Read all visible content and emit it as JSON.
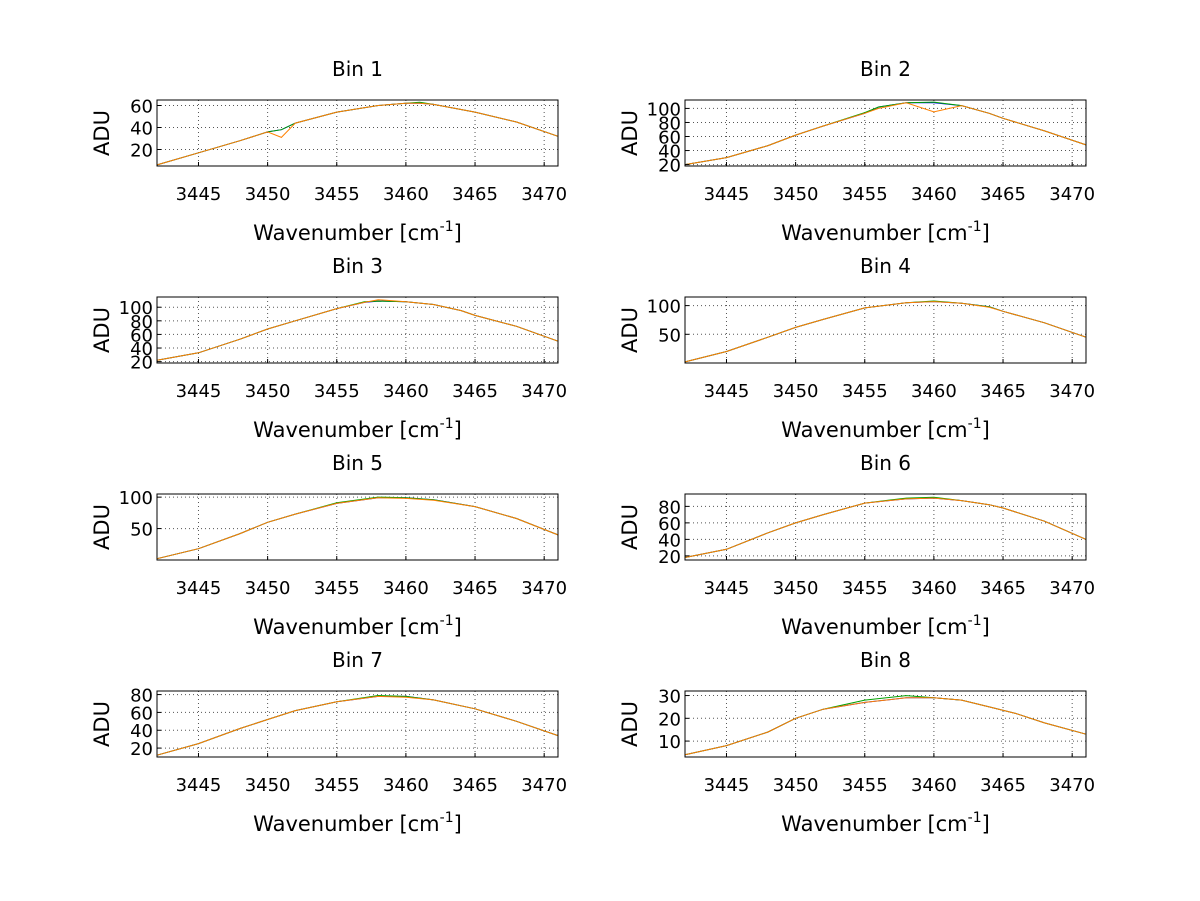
{
  "figure": {
    "background": "#ffffff"
  },
  "chart_data": [
    {
      "type": "line",
      "title": "Bin 1",
      "xlabel": "Wavenumber [cm",
      "xlabel_sup": "-1",
      "xlabel_tail": "]",
      "ylabel": "ADU",
      "xlim": [
        3442,
        3471
      ],
      "ylim": [
        5,
        65
      ],
      "xticks": [
        3445,
        3450,
        3455,
        3460,
        3465,
        3470
      ],
      "yticks": [
        20,
        40,
        60
      ],
      "grid": true,
      "x": [
        3442,
        3445,
        3448,
        3450,
        3451,
        3452,
        3455,
        3458,
        3460,
        3461,
        3462,
        3465,
        3468,
        3471
      ],
      "series": [
        {
          "name": "blue",
          "color": "#0000ff",
          "values": [
            6,
            17,
            28,
            36,
            38,
            44,
            54,
            60,
            62,
            62,
            61,
            54,
            45,
            32
          ]
        },
        {
          "name": "green",
          "color": "#00a000",
          "values": [
            6,
            17,
            28,
            36,
            38,
            44,
            54,
            60,
            62,
            63,
            61,
            54,
            45,
            32
          ]
        },
        {
          "name": "orange",
          "color": "#ff8000",
          "values": [
            6,
            17,
            28,
            36,
            31,
            44,
            54,
            60,
            62,
            62,
            61,
            54,
            45,
            32
          ]
        }
      ]
    },
    {
      "type": "line",
      "title": "Bin 2",
      "xlabel": "Wavenumber [cm",
      "xlabel_sup": "-1",
      "xlabel_tail": "]",
      "ylabel": "ADU",
      "xlim": [
        3442,
        3471
      ],
      "ylim": [
        18,
        112
      ],
      "xticks": [
        3445,
        3450,
        3455,
        3460,
        3465,
        3470
      ],
      "yticks": [
        20,
        40,
        60,
        80,
        100
      ],
      "grid": true,
      "x": [
        3442,
        3445,
        3448,
        3450,
        3452,
        3455,
        3456,
        3458,
        3460,
        3462,
        3464,
        3465,
        3468,
        3471
      ],
      "series": [
        {
          "name": "blue",
          "color": "#0000ff",
          "values": [
            20,
            30,
            47,
            62,
            75,
            93,
            102,
            108,
            108,
            104,
            93,
            86,
            68,
            48
          ]
        },
        {
          "name": "green",
          "color": "#00a000",
          "values": [
            20,
            30,
            47,
            62,
            75,
            94,
            102,
            108,
            109,
            104,
            93,
            86,
            68,
            48
          ]
        },
        {
          "name": "orange",
          "color": "#ff8000",
          "values": [
            20,
            30,
            47,
            62,
            75,
            93,
            100,
            108,
            95,
            104,
            93,
            86,
            68,
            48
          ]
        }
      ]
    },
    {
      "type": "line",
      "title": "Bin 3",
      "xlabel": "Wavenumber [cm",
      "xlabel_sup": "-1",
      "xlabel_tail": "]",
      "ylabel": "ADU",
      "xlim": [
        3442,
        3471
      ],
      "ylim": [
        18,
        115
      ],
      "xticks": [
        3445,
        3450,
        3455,
        3460,
        3465,
        3470
      ],
      "yticks": [
        20,
        40,
        60,
        80,
        100
      ],
      "grid": true,
      "x": [
        3442,
        3445,
        3448,
        3450,
        3452,
        3455,
        3457,
        3458,
        3460,
        3462,
        3464,
        3465,
        3468,
        3471
      ],
      "series": [
        {
          "name": "blue",
          "color": "#0000ff",
          "values": [
            22,
            33,
            53,
            68,
            80,
            98,
            107,
            109,
            108,
            104,
            95,
            88,
            72,
            50
          ]
        },
        {
          "name": "green",
          "color": "#00a000",
          "values": [
            22,
            33,
            53,
            68,
            80,
            98,
            108,
            109,
            108,
            104,
            95,
            88,
            72,
            50
          ]
        },
        {
          "name": "orange",
          "color": "#ff8000",
          "values": [
            22,
            33,
            53,
            68,
            80,
            98,
            107,
            111,
            108,
            104,
            95,
            88,
            72,
            50
          ]
        }
      ]
    },
    {
      "type": "line",
      "title": "Bin 4",
      "xlabel": "Wavenumber [cm",
      "xlabel_sup": "-1",
      "xlabel_tail": "]",
      "ylabel": "ADU",
      "xlim": [
        3442,
        3471
      ],
      "ylim": [
        0,
        115
      ],
      "xticks": [
        3445,
        3450,
        3455,
        3460,
        3465,
        3470
      ],
      "yticks": [
        50,
        100
      ],
      "grid": true,
      "x": [
        3442,
        3445,
        3448,
        3450,
        3452,
        3455,
        3458,
        3460,
        3462,
        3464,
        3465,
        3468,
        3471
      ],
      "series": [
        {
          "name": "blue",
          "color": "#0000ff",
          "values": [
            2,
            20,
            45,
            62,
            76,
            96,
            105,
            107,
            104,
            98,
            90,
            70,
            45
          ]
        },
        {
          "name": "green",
          "color": "#00a000",
          "values": [
            2,
            20,
            45,
            62,
            76,
            96,
            105,
            108,
            104,
            98,
            90,
            70,
            45
          ]
        },
        {
          "name": "orange",
          "color": "#ff8000",
          "values": [
            2,
            20,
            45,
            62,
            76,
            96,
            105,
            107,
            104,
            97,
            90,
            70,
            45
          ]
        }
      ]
    },
    {
      "type": "line",
      "title": "Bin 5",
      "xlabel": "Wavenumber [cm",
      "xlabel_sup": "-1",
      "xlabel_tail": "]",
      "ylabel": "ADU",
      "xlim": [
        3442,
        3471
      ],
      "ylim": [
        0,
        105
      ],
      "xticks": [
        3445,
        3450,
        3455,
        3460,
        3465,
        3470
      ],
      "yticks": [
        50,
        100
      ],
      "grid": true,
      "x": [
        3442,
        3445,
        3448,
        3450,
        3452,
        3455,
        3458,
        3460,
        3462,
        3465,
        3468,
        3471
      ],
      "series": [
        {
          "name": "blue",
          "color": "#0000ff",
          "values": [
            2,
            18,
            42,
            60,
            73,
            90,
            99,
            99,
            96,
            85,
            66,
            40
          ]
        },
        {
          "name": "green",
          "color": "#00a000",
          "values": [
            2,
            18,
            42,
            60,
            73,
            91,
            100,
            99,
            96,
            85,
            66,
            40
          ]
        },
        {
          "name": "orange",
          "color": "#ff8000",
          "values": [
            2,
            18,
            42,
            60,
            73,
            90,
            99,
            98,
            95,
            85,
            66,
            40
          ]
        }
      ]
    },
    {
      "type": "line",
      "title": "Bin 6",
      "xlabel": "Wavenumber [cm",
      "xlabel_sup": "-1",
      "xlabel_tail": "]",
      "ylabel": "ADU",
      "xlim": [
        3442,
        3471
      ],
      "ylim": [
        15,
        95
      ],
      "xticks": [
        3445,
        3450,
        3455,
        3460,
        3465,
        3470
      ],
      "yticks": [
        20,
        40,
        60,
        80
      ],
      "grid": true,
      "x": [
        3442,
        3445,
        3448,
        3450,
        3452,
        3455,
        3458,
        3460,
        3462,
        3464,
        3465,
        3468,
        3471
      ],
      "series": [
        {
          "name": "blue",
          "color": "#0000ff",
          "values": [
            18,
            28,
            48,
            60,
            70,
            84,
            89,
            90,
            87,
            82,
            78,
            62,
            40
          ]
        },
        {
          "name": "green",
          "color": "#00a000",
          "values": [
            18,
            28,
            48,
            60,
            70,
            84,
            90,
            91,
            87,
            82,
            78,
            62,
            40
          ]
        },
        {
          "name": "orange",
          "color": "#ff8000",
          "values": [
            18,
            28,
            48,
            60,
            70,
            84,
            89,
            90,
            87,
            82,
            78,
            62,
            40
          ]
        }
      ]
    },
    {
      "type": "line",
      "title": "Bin 7",
      "xlabel": "Wavenumber [cm",
      "xlabel_sup": "-1",
      "xlabel_tail": "]",
      "ylabel": "ADU",
      "xlim": [
        3442,
        3471
      ],
      "ylim": [
        10,
        84
      ],
      "xticks": [
        3445,
        3450,
        3455,
        3460,
        3465,
        3470
      ],
      "yticks": [
        20,
        40,
        60,
        80
      ],
      "grid": true,
      "x": [
        3442,
        3445,
        3448,
        3450,
        3452,
        3455,
        3458,
        3460,
        3462,
        3465,
        3468,
        3471
      ],
      "series": [
        {
          "name": "blue",
          "color": "#0000ff",
          "values": [
            12,
            25,
            42,
            52,
            62,
            72,
            78,
            78,
            74,
            64,
            50,
            34
          ]
        },
        {
          "name": "green",
          "color": "#00a000",
          "values": [
            12,
            25,
            42,
            52,
            62,
            72,
            79,
            78,
            74,
            64,
            50,
            34
          ]
        },
        {
          "name": "orange",
          "color": "#ff8000",
          "values": [
            12,
            25,
            42,
            52,
            62,
            72,
            78,
            77,
            74,
            64,
            50,
            34
          ]
        }
      ]
    },
    {
      "type": "line",
      "title": "Bin 8",
      "xlabel": "Wavenumber [cm",
      "xlabel_sup": "-1",
      "xlabel_tail": "]",
      "ylabel": "ADU",
      "xlim": [
        3442,
        3471
      ],
      "ylim": [
        3,
        32
      ],
      "xticks": [
        3445,
        3450,
        3455,
        3460,
        3465,
        3470
      ],
      "yticks": [
        10,
        20,
        30
      ],
      "grid": true,
      "x": [
        3442,
        3445,
        3448,
        3450,
        3452,
        3455,
        3458,
        3460,
        3462,
        3464,
        3466,
        3468,
        3471
      ],
      "series": [
        {
          "name": "blue",
          "color": "#0000ff",
          "values": [
            4,
            8,
            14,
            20,
            24,
            27,
            29,
            29,
            28,
            25,
            22,
            18,
            13
          ]
        },
        {
          "name": "green",
          "color": "#00a000",
          "values": [
            4,
            8,
            14,
            20,
            24,
            28,
            30,
            29,
            28,
            25,
            22,
            18,
            13
          ]
        },
        {
          "name": "orange",
          "color": "#ff8000",
          "values": [
            4,
            8,
            14,
            20,
            24,
            27,
            29,
            29,
            28,
            25,
            22,
            18,
            13
          ]
        }
      ]
    }
  ]
}
